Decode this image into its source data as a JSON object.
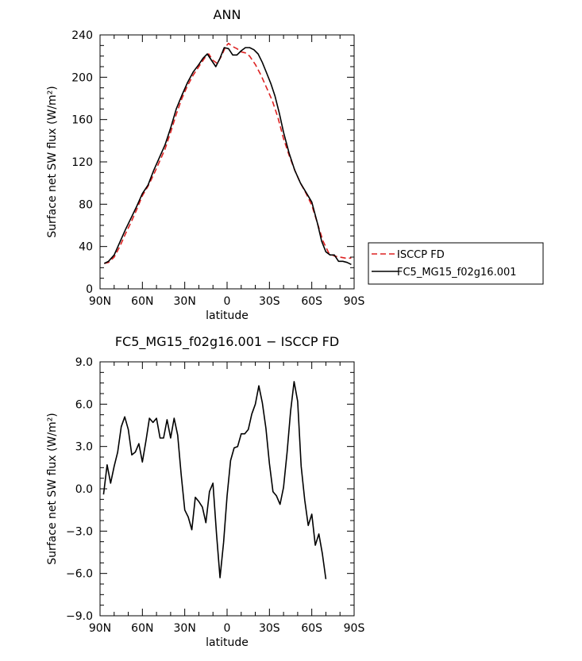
{
  "chart_data": [
    {
      "type": "line",
      "title": "ANN",
      "xlabel": "latitude",
      "ylabel": "Surface net SW flux (W/m²)",
      "xlim": [
        -90,
        90
      ],
      "ylim": [
        0,
        240
      ],
      "x_ticks": [
        -90,
        -60,
        -30,
        0,
        30,
        60,
        90
      ],
      "x_tick_labels": [
        "90N",
        "60N",
        "30N",
        "0",
        "30S",
        "60S",
        "90S"
      ],
      "y_ticks": [
        0,
        40,
        80,
        120,
        160,
        200,
        240
      ],
      "y_tick_labels": [
        "0",
        "40",
        "80",
        "120",
        "160",
        "200",
        "240"
      ],
      "legend": {
        "position": "right"
      },
      "series": [
        {
          "name": "ISCCP FD",
          "color": "#dd2222",
          "dash": "dashed",
          "points": [
            [
              -87,
              24
            ],
            [
              -84,
              25
            ],
            [
              -80,
              30
            ],
            [
              -76,
              40
            ],
            [
              -72,
              52
            ],
            [
              -68,
              63
            ],
            [
              -64,
              75
            ],
            [
              -60,
              88
            ],
            [
              -56,
              97
            ],
            [
              -52,
              108
            ],
            [
              -48,
              120
            ],
            [
              -44,
              132
            ],
            [
              -40,
              148
            ],
            [
              -36,
              165
            ],
            [
              -32,
              180
            ],
            [
              -28,
              192
            ],
            [
              -24,
              202
            ],
            [
              -20,
              210
            ],
            [
              -16,
              218
            ],
            [
              -13,
              222
            ],
            [
              -10,
              216
            ],
            [
              -7,
              213
            ],
            [
              -4,
              220
            ],
            [
              -1,
              229
            ],
            [
              1,
              232
            ],
            [
              4,
              229
            ],
            [
              7,
              227
            ],
            [
              10,
              224
            ],
            [
              13,
              223
            ],
            [
              16,
              220
            ],
            [
              20,
              212
            ],
            [
              24,
              202
            ],
            [
              28,
              190
            ],
            [
              32,
              178
            ],
            [
              36,
              162
            ],
            [
              40,
              142
            ],
            [
              44,
              126
            ],
            [
              48,
              112
            ],
            [
              52,
              100
            ],
            [
              56,
              90
            ],
            [
              60,
              79
            ],
            [
              64,
              62
            ],
            [
              68,
              45
            ],
            [
              72,
              34
            ],
            [
              76,
              31
            ],
            [
              80,
              30
            ],
            [
              84,
              29
            ],
            [
              88,
              29
            ]
          ]
        },
        {
          "name": "FC5_MG15_f02g16.001",
          "color": "#000000",
          "dash": "solid",
          "points": [
            [
              -87,
              24
            ],
            [
              -84,
              26
            ],
            [
              -80,
              32
            ],
            [
              -76,
              44
            ],
            [
              -72,
              56
            ],
            [
              -68,
              67
            ],
            [
              -64,
              78
            ],
            [
              -60,
              90
            ],
            [
              -56,
              98
            ],
            [
              -52,
              112
            ],
            [
              -48,
              124
            ],
            [
              -44,
              136
            ],
            [
              -40,
              152
            ],
            [
              -36,
              170
            ],
            [
              -32,
              183
            ],
            [
              -28,
              195
            ],
            [
              -24,
              205
            ],
            [
              -20,
              212
            ],
            [
              -17,
              218
            ],
            [
              -14,
              222
            ],
            [
              -11,
              216
            ],
            [
              -8,
              210
            ],
            [
              -5,
              218
            ],
            [
              -2,
              228
            ],
            [
              1,
              227
            ],
            [
              4,
              221
            ],
            [
              7,
              221
            ],
            [
              10,
              225
            ],
            [
              13,
              228
            ],
            [
              16,
              228
            ],
            [
              19,
              226
            ],
            [
              22,
              222
            ],
            [
              25,
              214
            ],
            [
              28,
              204
            ],
            [
              31,
              194
            ],
            [
              34,
              182
            ],
            [
              37,
              166
            ],
            [
              40,
              148
            ],
            [
              44,
              128
            ],
            [
              48,
              112
            ],
            [
              52,
              100
            ],
            [
              56,
              91
            ],
            [
              60,
              82
            ],
            [
              64,
              62
            ],
            [
              67,
              45
            ],
            [
              70,
              35
            ],
            [
              73,
              32
            ],
            [
              76,
              32
            ],
            [
              79,
              26
            ],
            [
              82,
              26
            ],
            [
              85,
              25
            ],
            [
              88,
              23
            ]
          ]
        }
      ]
    },
    {
      "type": "line",
      "title": "FC5_MG15_f02g16.001 − ISCCP FD",
      "xlabel": "latitude",
      "ylabel": "Surface net SW flux (W/m²)",
      "xlim": [
        -90,
        90
      ],
      "ylim": [
        -9,
        9
      ],
      "x_ticks": [
        -90,
        -60,
        -30,
        0,
        30,
        60,
        90
      ],
      "x_tick_labels": [
        "90N",
        "60N",
        "30N",
        "0",
        "30S",
        "60S",
        "90S"
      ],
      "y_ticks": [
        -9,
        -6,
        -3,
        0,
        3,
        6,
        9
      ],
      "y_tick_labels": [
        "−9.0",
        "−6.0",
        "−3.0",
        "0.0",
        "3.0",
        "6.0",
        "9.0"
      ],
      "series": [
        {
          "color": "#000000",
          "dash": "solid",
          "points": [
            [
              -87.5,
              -0.4
            ],
            [
              -85,
              1.7
            ],
            [
              -82.5,
              0.4
            ],
            [
              -80,
              1.6
            ],
            [
              -77.5,
              2.6
            ],
            [
              -75,
              4.4
            ],
            [
              -72.5,
              5.1
            ],
            [
              -70,
              4.2
            ],
            [
              -67.5,
              2.4
            ],
            [
              -65,
              2.6
            ],
            [
              -62.5,
              3.2
            ],
            [
              -60,
              1.9
            ],
            [
              -57.5,
              3.4
            ],
            [
              -55,
              5.0
            ],
            [
              -52.5,
              4.7
            ],
            [
              -50,
              5.0
            ],
            [
              -47.5,
              3.6
            ],
            [
              -45,
              3.6
            ],
            [
              -42.5,
              4.9
            ],
            [
              -40,
              3.6
            ],
            [
              -37.5,
              5.0
            ],
            [
              -35,
              3.8
            ],
            [
              -32.5,
              1.0
            ],
            [
              -30,
              -1.5
            ],
            [
              -27.5,
              -2.0
            ],
            [
              -25,
              -2.9
            ],
            [
              -22.5,
              -0.6
            ],
            [
              -20,
              -0.9
            ],
            [
              -17.5,
              -1.3
            ],
            [
              -15,
              -2.4
            ],
            [
              -12.5,
              -0.2
            ],
            [
              -10,
              0.4
            ],
            [
              -7.5,
              -3.2
            ],
            [
              -5,
              -6.3
            ],
            [
              -2.5,
              -3.8
            ],
            [
              0,
              -0.5
            ],
            [
              2.5,
              2.0
            ],
            [
              5,
              2.9
            ],
            [
              7.5,
              3.0
            ],
            [
              10,
              3.9
            ],
            [
              12.5,
              3.9
            ],
            [
              15,
              4.2
            ],
            [
              17.5,
              5.3
            ],
            [
              20,
              6.0
            ],
            [
              22.5,
              7.3
            ],
            [
              25,
              6.1
            ],
            [
              27.5,
              4.3
            ],
            [
              30,
              1.8
            ],
            [
              32.5,
              -0.2
            ],
            [
              35,
              -0.5
            ],
            [
              37.5,
              -1.1
            ],
            [
              40,
              0.1
            ],
            [
              42.5,
              2.6
            ],
            [
              45,
              5.5
            ],
            [
              47.5,
              7.6
            ],
            [
              50,
              6.2
            ],
            [
              52.5,
              1.6
            ],
            [
              55,
              -0.8
            ],
            [
              57.5,
              -2.6
            ],
            [
              60,
              -1.8
            ],
            [
              62.5,
              -4.0
            ],
            [
              65,
              -3.2
            ],
            [
              67.5,
              -4.6
            ],
            [
              70,
              -6.4
            ]
          ]
        }
      ]
    }
  ]
}
